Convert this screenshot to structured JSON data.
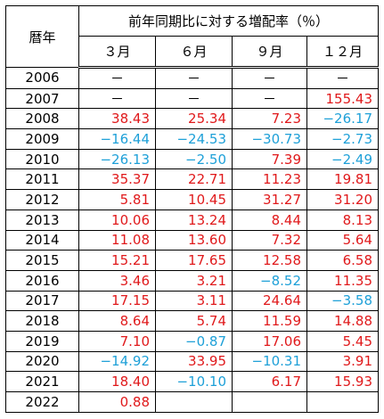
{
  "table": {
    "year_header": "暦年",
    "group_header": "前年同期比に対する増配率（％）",
    "columns": [
      "３月",
      "６月",
      "９月",
      "１２月"
    ],
    "rows": [
      [
        "2006",
        "－",
        "－",
        "－",
        "－"
      ],
      [
        "2007",
        "－",
        "－",
        "－",
        "155.43"
      ],
      [
        "2008",
        "38.43",
        "25.34",
        "7.23",
        "−26.17"
      ],
      [
        "2009",
        "−16.44",
        "−24.53",
        "−30.73",
        "−2.73"
      ],
      [
        "2010",
        "−26.13",
        "−2.50",
        "7.39",
        "−2.49"
      ],
      [
        "2011",
        "35.37",
        "22.71",
        "11.23",
        "19.81"
      ],
      [
        "2012",
        "5.81",
        "10.45",
        "31.27",
        "31.20"
      ],
      [
        "2013",
        "10.06",
        "13.24",
        "8.44",
        "8.13"
      ],
      [
        "2014",
        "11.08",
        "13.60",
        "7.32",
        "5.64"
      ],
      [
        "2015",
        "15.21",
        "17.65",
        "12.58",
        "6.58"
      ],
      [
        "2016",
        "3.46",
        "3.21",
        "−8.52",
        "11.35"
      ],
      [
        "2017",
        "17.15",
        "3.11",
        "24.64",
        "−3.58"
      ],
      [
        "2018",
        "8.64",
        "5.74",
        "11.59",
        "14.88"
      ],
      [
        "2019",
        "7.10",
        "−0.87",
        "17.06",
        "5.45"
      ],
      [
        "2020",
        "−14.92",
        "33.95",
        "−10.31",
        "3.91"
      ],
      [
        "2021",
        "18.40",
        "−10.10",
        "6.17",
        "15.93"
      ],
      [
        "2022",
        "0.88"
      ]
    ]
  }
}
